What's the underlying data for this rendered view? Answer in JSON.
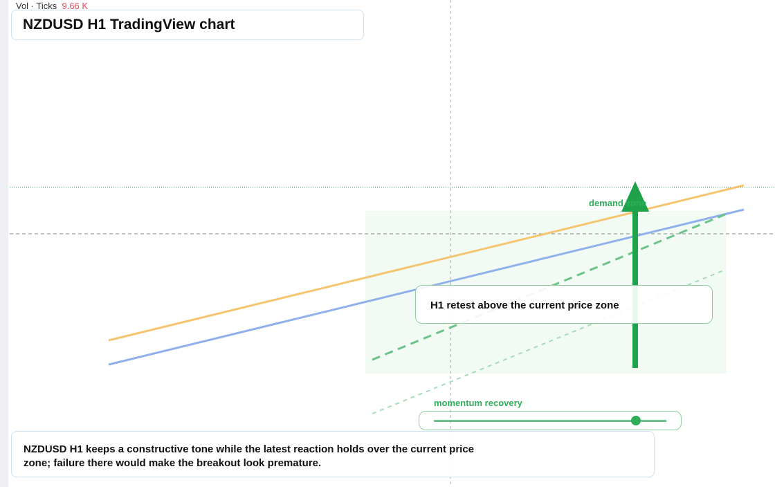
{
  "legend": {
    "label": "Vol · Ticks",
    "value": "9.66 K"
  },
  "title": "NZDUSD H1 TradingView chart",
  "annotations": {
    "zone": "demand zone",
    "retest": "H1 retest above the current price zone",
    "momentum": "momentum recovery"
  },
  "caption": "NZDUSD H1 keeps a constructive tone while the latest reaction holds over the current price zone; failure there would make the breakout look premature."
}
